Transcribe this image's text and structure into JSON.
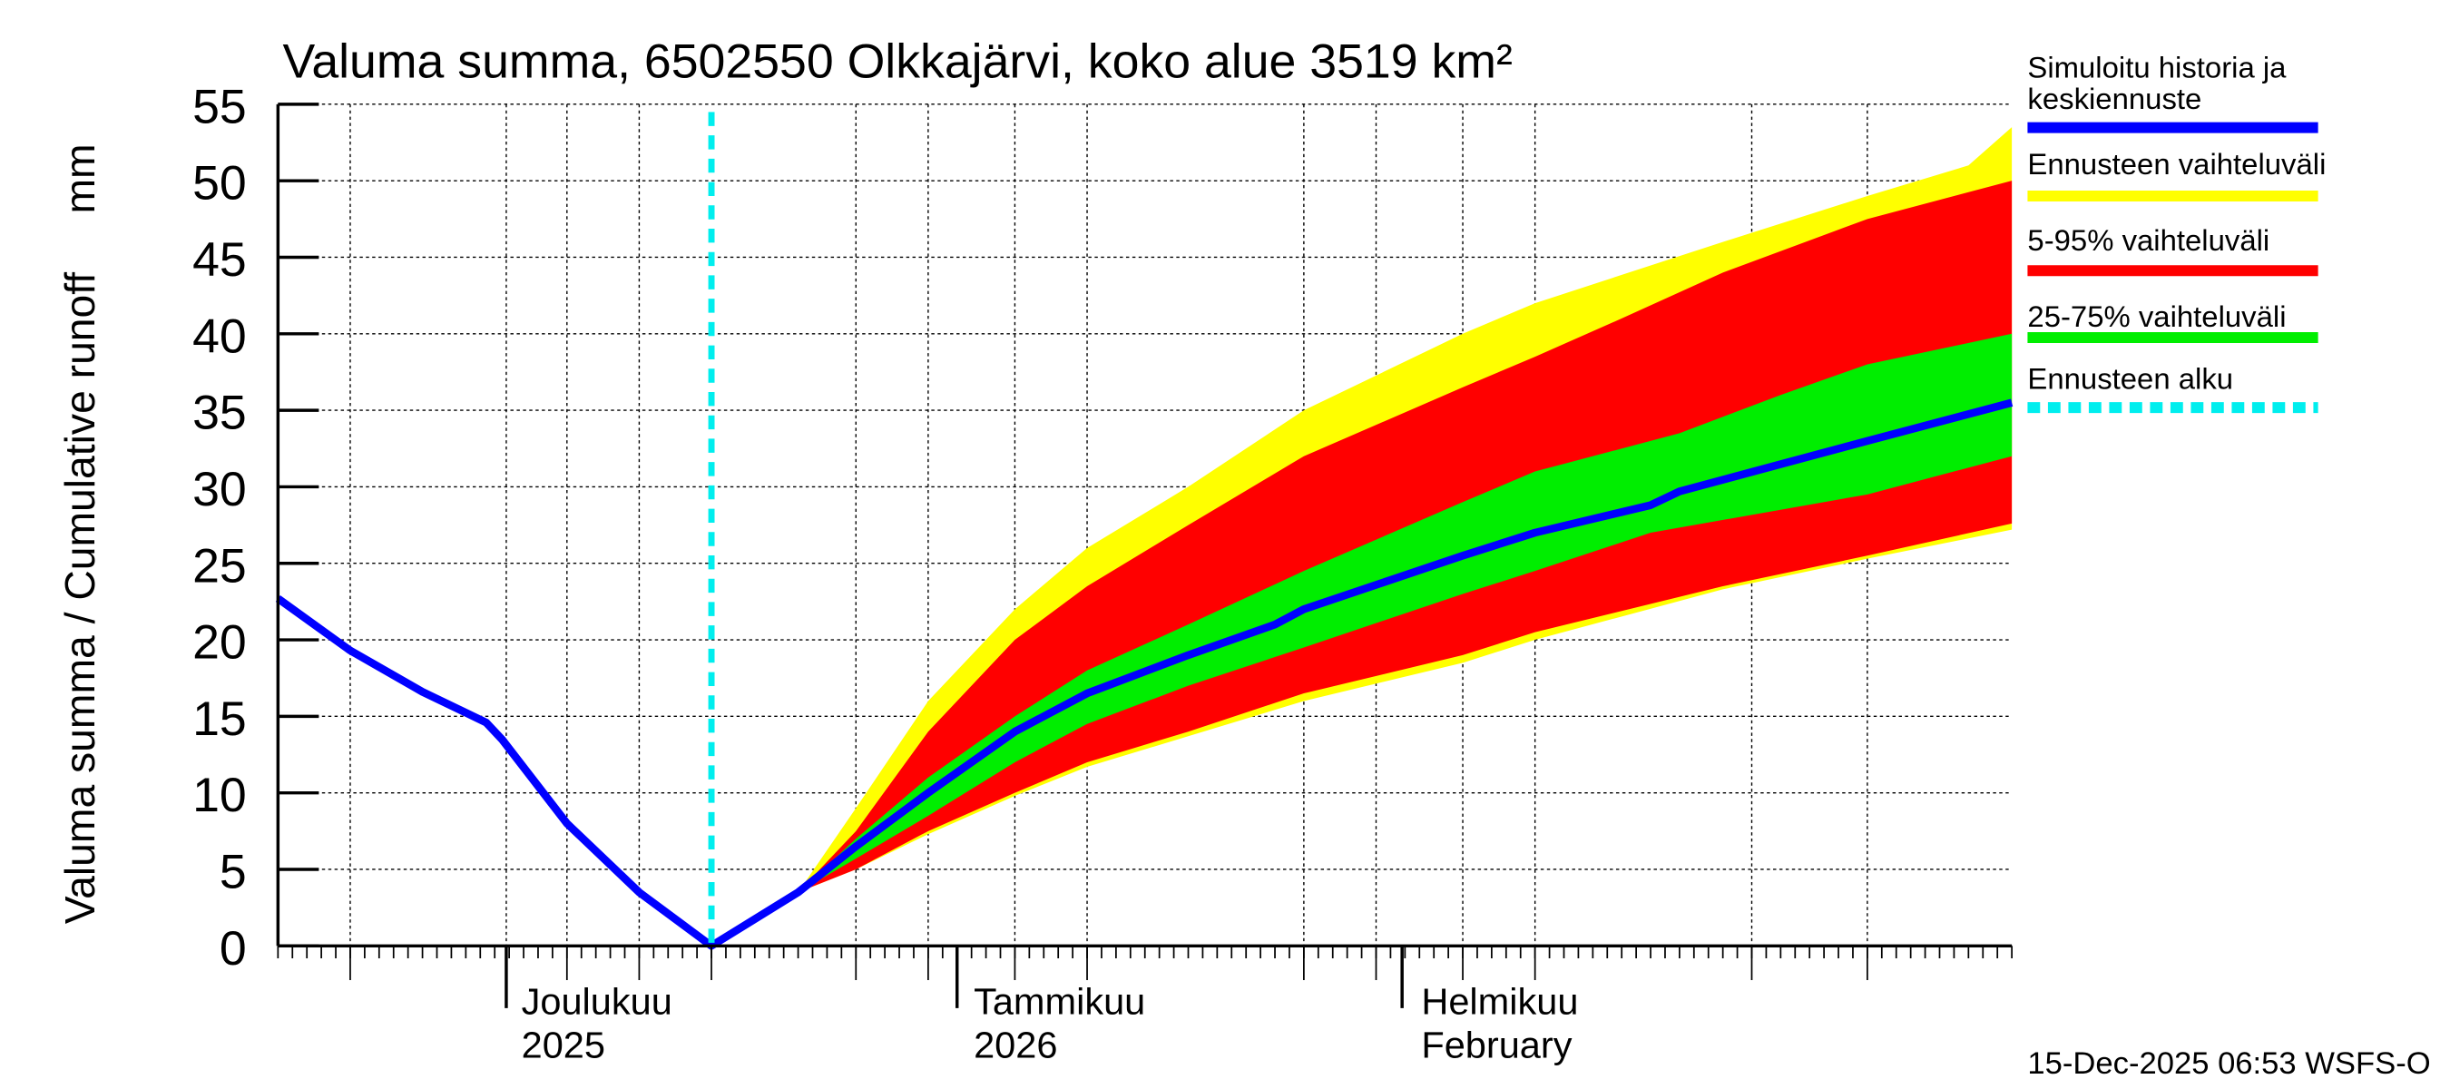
{
  "chart_data": {
    "type": "area",
    "title": "Valuma summa, 6502550 Olkkajärvi, koko alue 3519 km²",
    "ylabel": "Valuma summa / Cumulative runoff     mm",
    "ylim": [
      0,
      55
    ],
    "yticks": [
      "0",
      "5",
      "10",
      "15",
      "20",
      "25",
      "30",
      "35",
      "40",
      "45",
      "50",
      "55"
    ],
    "x_unit": "days since 15-Nov-2025",
    "xlim": [
      0,
      120
    ],
    "grid": true,
    "month_labels": [
      {
        "day": 16,
        "line1": "Joulukuu",
        "line2": "2025"
      },
      {
        "day": 47,
        "line1": "Tammikuu",
        "line2": "2026"
      },
      {
        "day": 78,
        "line1": "Helmikuu",
        "line2": "February"
      }
    ],
    "forecast_start_day": 30,
    "series": [
      {
        "name": "Ennusteen vaihteluväli",
        "color": "#ffff00",
        "type": "band",
        "upper": [
          [
            30,
            0
          ],
          [
            36,
            3.5
          ],
          [
            40,
            9
          ],
          [
            45,
            16
          ],
          [
            51,
            22
          ],
          [
            56,
            26
          ],
          [
            63,
            30
          ],
          [
            71,
            35
          ],
          [
            82,
            40
          ],
          [
            87,
            42
          ],
          [
            100,
            46
          ],
          [
            110,
            49
          ],
          [
            117,
            51
          ],
          [
            120,
            53.5
          ]
        ],
        "lower": [
          [
            30,
            0
          ],
          [
            36,
            3.5
          ],
          [
            40,
            5
          ],
          [
            45,
            7.3
          ],
          [
            51,
            9.8
          ],
          [
            56,
            11.7
          ],
          [
            63,
            13.7
          ],
          [
            71,
            16
          ],
          [
            82,
            18.5
          ],
          [
            87,
            20
          ],
          [
            100,
            23.3
          ],
          [
            110,
            25.3
          ],
          [
            120,
            27.2
          ]
        ]
      },
      {
        "name": "5-95% vaihteluväli",
        "color": "#ff0000",
        "type": "band",
        "upper": [
          [
            30,
            0
          ],
          [
            36,
            3.5
          ],
          [
            40,
            7.5
          ],
          [
            45,
            14
          ],
          [
            51,
            20
          ],
          [
            56,
            23.5
          ],
          [
            63,
            27.5
          ],
          [
            71,
            32
          ],
          [
            82,
            36.5
          ],
          [
            87,
            38.5
          ],
          [
            93,
            41
          ],
          [
            100,
            44
          ],
          [
            110,
            47.5
          ],
          [
            120,
            50
          ]
        ],
        "lower": [
          [
            30,
            0
          ],
          [
            36,
            3.5
          ],
          [
            40,
            5
          ],
          [
            45,
            7.5
          ],
          [
            51,
            10
          ],
          [
            56,
            12
          ],
          [
            63,
            14
          ],
          [
            71,
            16.5
          ],
          [
            82,
            19
          ],
          [
            87,
            20.5
          ],
          [
            100,
            23.5
          ],
          [
            110,
            25.5
          ],
          [
            120,
            27.6
          ]
        ]
      },
      {
        "name": "25-75% vaihteluväli",
        "color": "#00ee00",
        "type": "band",
        "upper": [
          [
            30,
            0
          ],
          [
            36,
            3.5
          ],
          [
            40,
            7
          ],
          [
            45,
            11
          ],
          [
            51,
            15
          ],
          [
            56,
            18
          ],
          [
            63,
            21
          ],
          [
            71,
            24.5
          ],
          [
            82,
            29
          ],
          [
            87,
            31
          ],
          [
            97,
            33.5
          ],
          [
            104,
            36
          ],
          [
            110,
            38
          ],
          [
            120,
            40
          ]
        ],
        "lower": [
          [
            30,
            0
          ],
          [
            36,
            3.5
          ],
          [
            40,
            5.7
          ],
          [
            45,
            8.5
          ],
          [
            51,
            12
          ],
          [
            56,
            14.5
          ],
          [
            63,
            17
          ],
          [
            71,
            19.5
          ],
          [
            82,
            23
          ],
          [
            87,
            24.5
          ],
          [
            95,
            27
          ],
          [
            110,
            29.5
          ],
          [
            120,
            32
          ]
        ]
      },
      {
        "name": "Simuloitu historia ja keskiennuste",
        "color": "#0000ff",
        "type": "line",
        "points": [
          [
            0,
            22.7
          ],
          [
            5,
            19.3
          ],
          [
            10,
            16.6
          ],
          [
            14.4,
            14.6
          ],
          [
            15.5,
            13.5
          ],
          [
            20,
            8
          ],
          [
            25,
            3.5
          ],
          [
            30,
            0
          ],
          [
            36,
            3.5
          ],
          [
            40,
            6.5
          ],
          [
            45,
            10
          ],
          [
            51,
            14
          ],
          [
            56,
            16.5
          ],
          [
            63,
            19
          ],
          [
            69,
            21
          ],
          [
            71,
            22
          ],
          [
            82,
            25.5
          ],
          [
            87,
            27
          ],
          [
            95,
            28.8
          ],
          [
            97,
            29.7
          ],
          [
            110,
            33
          ],
          [
            120,
            35.5
          ]
        ]
      },
      {
        "name": "Ennusteen alku",
        "color": "#00eeee",
        "type": "vline"
      }
    ],
    "legend_position": "right",
    "legend": [
      "Simuloitu historia ja keskiennuste",
      "Ennusteen vaihteluväli",
      "5-95% vaihteluväli",
      "25-75% vaihteluväli",
      "Ennusteen alku"
    ]
  },
  "footer": {
    "timestamp": "15-Dec-2025 06:53 WSFS-O"
  }
}
